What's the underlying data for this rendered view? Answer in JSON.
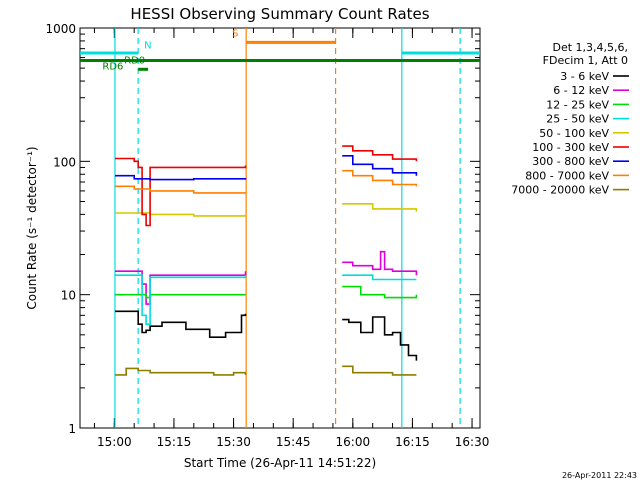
{
  "chart_data": {
    "type": "line",
    "title": "HESSI Observing Summary Count Rates",
    "xlabel": "Start Time (26-Apr-11 14:51:22)",
    "ylabel": "Count Rate (s⁻¹ detector⁻¹)",
    "yscale": "log",
    "xlim": [
      "14:51:22",
      "16:32:00"
    ],
    "ylim": [
      1,
      1000
    ],
    "x_ticks": [
      "15:00",
      "15:15",
      "15:30",
      "15:45",
      "16:00",
      "16:15",
      "16:30"
    ],
    "y_ticks": [
      "1",
      "10",
      "100",
      "1000"
    ],
    "legend_position": "right",
    "legend_header": [
      "Det 1,3,4,5,6,",
      "FDecim 1, Att 0"
    ],
    "grid": false,
    "timestamp": "26-Apr-2011 22:43",
    "series": [
      {
        "name": "3 - 6 keV",
        "color": "#000000",
        "segments": [
          {
            "x": [
              "15:00:10",
              "15:04",
              "15:06",
              "15:07",
              "15:08",
              "15:09",
              "15:12",
              "15:18",
              "15:24",
              "15:28",
              "15:32",
              "15:33"
            ],
            "y": [
              7.5,
              7.5,
              6,
              5.2,
              5.4,
              5.8,
              6.2,
              5.5,
              4.8,
              5.2,
              7.0,
              7.2
            ]
          },
          {
            "x": [
              "15:57:20",
              "15:59",
              "16:02",
              "16:05",
              "16:08",
              "16:10",
              "16:12",
              "16:14",
              "16:16"
            ],
            "y": [
              6.5,
              6.2,
              5.2,
              6.8,
              5.0,
              5.2,
              4.2,
              3.5,
              3.2
            ]
          }
        ]
      },
      {
        "name": "6 - 12 keV",
        "color": "#dd00dd",
        "segments": [
          {
            "x": [
              "15:00:10",
              "15:04",
              "15:07",
              "15:08",
              "15:09",
              "15:15",
              "15:25",
              "15:33"
            ],
            "y": [
              15,
              15,
              12,
              8.5,
              14,
              14,
              14,
              15
            ]
          },
          {
            "x": [
              "15:57:20",
              "16:00",
              "16:05",
              "16:07",
              "16:08",
              "16:10",
              "16:16"
            ],
            "y": [
              17.5,
              16.5,
              15.5,
              21,
              15.5,
              15,
              14
            ]
          }
        ]
      },
      {
        "name": "12 - 25 keV",
        "color": "#00dd00",
        "segments": [
          {
            "x": [
              "15:00:10",
              "15:05",
              "15:08",
              "15:09",
              "15:20",
              "15:33"
            ],
            "y": [
              10,
              10,
              9.5,
              10,
              10,
              10
            ]
          },
          {
            "x": [
              "15:57:20",
              "16:02",
              "16:08",
              "16:16"
            ],
            "y": [
              11.5,
              10,
              9.5,
              10
            ]
          }
        ]
      },
      {
        "name": "25 - 50 keV",
        "color": "#00dddd",
        "segments": [
          {
            "x": [
              "15:00:10",
              "15:05",
              "15:07",
              "15:08",
              "15:09",
              "15:20",
              "15:33"
            ],
            "y": [
              14,
              14,
              7,
              6,
              13.5,
              13.5,
              14
            ]
          },
          {
            "x": [
              "15:57:20",
              "16:05",
              "16:16"
            ],
            "y": [
              14,
              13,
              13
            ]
          }
        ]
      },
      {
        "name": "50 - 100 keV",
        "color": "#d4c800",
        "segments": [
          {
            "x": [
              "15:00:10",
              "15:05",
              "15:09",
              "15:20",
              "15:33"
            ],
            "y": [
              41,
              41,
              40,
              39,
              40
            ]
          },
          {
            "x": [
              "15:57:20",
              "16:05",
              "16:16"
            ],
            "y": [
              48,
              44,
              42
            ]
          }
        ]
      },
      {
        "name": "100 - 300 keV",
        "color": "#ee0000",
        "segments": [
          {
            "x": [
              "15:00:10",
              "15:05",
              "15:06",
              "15:07",
              "15:08",
              "15:09",
              "15:15",
              "15:33"
            ],
            "y": [
              105,
              100,
              90,
              40,
              33,
              90,
              90,
              93
            ]
          },
          {
            "x": [
              "15:57:20",
              "16:00",
              "16:05",
              "16:10",
              "16:16"
            ],
            "y": [
              130,
              120,
              112,
              104,
              100
            ]
          }
        ]
      },
      {
        "name": "300 - 800 keV",
        "color": "#0000ee",
        "segments": [
          {
            "x": [
              "15:00:10",
              "15:05",
              "15:09",
              "15:20",
              "15:33"
            ],
            "y": [
              78,
              74,
              73,
              74,
              75
            ]
          },
          {
            "x": [
              "15:57:20",
              "16:00",
              "16:05",
              "16:10",
              "16:16"
            ],
            "y": [
              110,
              95,
              88,
              82,
              78
            ]
          }
        ]
      },
      {
        "name": "800 - 7000 keV",
        "color": "#ff7f00",
        "segments": [
          {
            "x": [
              "15:00:10",
              "15:05",
              "15:09",
              "15:20",
              "15:33"
            ],
            "y": [
              65,
              62,
              60,
              58,
              58
            ]
          },
          {
            "x": [
              "15:57:20",
              "16:00",
              "16:05",
              "16:10",
              "16:16"
            ],
            "y": [
              85,
              78,
              72,
              67,
              65
            ]
          }
        ]
      },
      {
        "name": "7000 - 20000 keV",
        "color": "#8b7d00",
        "segments": [
          {
            "x": [
              "15:00:10",
              "15:03",
              "15:06",
              "15:09",
              "15:15",
              "15:20",
              "15:25",
              "15:30",
              "15:33"
            ],
            "y": [
              2.5,
              2.8,
              2.7,
              2.6,
              2.6,
              2.6,
              2.5,
              2.6,
              2.5
            ]
          },
          {
            "x": [
              "15:57:20",
              "16:00",
              "16:05",
              "16:10",
              "16:16"
            ],
            "y": [
              2.9,
              2.6,
              2.6,
              2.5,
              2.5
            ]
          }
        ]
      }
    ],
    "markers": {
      "vertical_lines": [
        {
          "x": "15:00:10",
          "color": "#00dddd",
          "style": "solid"
        },
        {
          "x": "15:06:00",
          "color": "#00dddd",
          "style": "dashed"
        },
        {
          "x": "15:33:10",
          "color": "#ff7f00",
          "style": "solid"
        },
        {
          "x": "15:55:40",
          "color": "#ff7f00",
          "style": "dashed"
        },
        {
          "x": "16:12:20",
          "color": "#00dddd",
          "style": "solid"
        },
        {
          "x": "16:27:00",
          "color": "#00dddd",
          "style": "dashed"
        }
      ],
      "horizontal_bars": [
        {
          "label": "",
          "color": "#00dddd",
          "x": [
            "14:51:22",
            "15:06:00"
          ],
          "y": 650
        },
        {
          "label": "",
          "color": "#00dddd",
          "x": [
            "16:12:20",
            "16:32:00"
          ],
          "y": 650
        },
        {
          "label": "S",
          "color": "#ff7f00",
          "x": [
            "15:33:10",
            "15:55:40"
          ],
          "y": 780
        },
        {
          "label": "",
          "color": "#007f00",
          "x": [
            "14:51:22",
            "16:32:00"
          ],
          "y": 570
        },
        {
          "label": "RD0",
          "color": "#007f00",
          "x": [
            "15:06:00",
            "15:08:30"
          ],
          "y": 490
        }
      ],
      "labels": [
        {
          "text": "N",
          "color": "#00dddd",
          "x": "15:07:30",
          "y": 700
        },
        {
          "text": "RD6",
          "color": "#007f00",
          "x": "14:57:00",
          "y": 490
        }
      ]
    }
  }
}
